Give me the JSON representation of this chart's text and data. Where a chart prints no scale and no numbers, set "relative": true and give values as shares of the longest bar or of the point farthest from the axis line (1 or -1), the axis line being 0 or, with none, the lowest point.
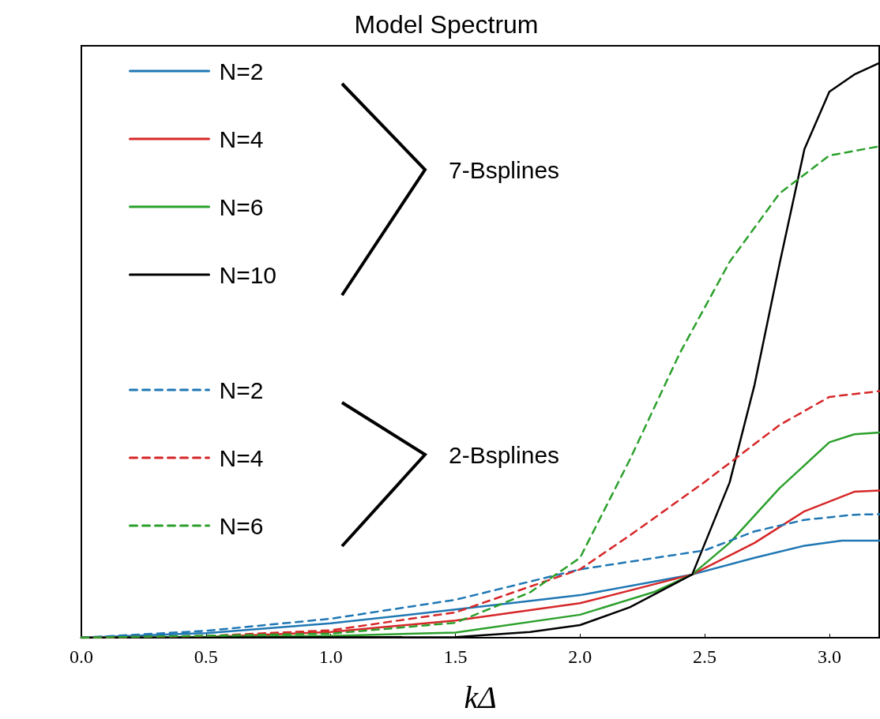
{
  "chart_data": {
    "type": "line",
    "title": "Model Spectrum",
    "xlabel": "kΔ",
    "relative": true,
    "grid": false,
    "legend": "top left",
    "marker": "none",
    "xlim": [
      0,
      3.2
    ],
    "xticks": [
      {
        "value": 0,
        "label": "0.0"
      },
      {
        "value": 0.5,
        "label": "0.5"
      },
      {
        "value": 1,
        "label": "1.0"
      },
      {
        "value": 1.5,
        "label": "1.5"
      },
      {
        "value": 2,
        "label": "2.0"
      },
      {
        "value": 2.5,
        "label": "2.5"
      },
      {
        "value": 3,
        "label": "3.0"
      }
    ],
    "annotations": [
      "7-Bsplines",
      "2-Bsplines"
    ],
    "series": [
      {
        "name": "N=2",
        "color": "#1f77b4",
        "line_style": "solid",
        "x": [
          0,
          0.5,
          1.0,
          1.5,
          2.0,
          2.45,
          2.7,
          2.9,
          3.05,
          3.2
        ],
        "values": [
          0,
          0.008,
          0.025,
          0.049,
          0.074,
          0.11,
          0.139,
          0.16,
          0.169,
          0.169
        ]
      },
      {
        "name": "N=4",
        "color": "#d62728",
        "line_style": "solid",
        "x": [
          0,
          0.5,
          1.0,
          1.5,
          2.0,
          2.45,
          2.7,
          2.9,
          3.1,
          3.2
        ],
        "values": [
          0,
          0.001,
          0.01,
          0.03,
          0.06,
          0.11,
          0.165,
          0.22,
          0.254,
          0.256
        ]
      },
      {
        "name": "N=6",
        "color": "#2ca02c",
        "line_style": "solid",
        "x": [
          0,
          1.0,
          1.5,
          2.0,
          2.3,
          2.45,
          2.6,
          2.8,
          3.0,
          3.1,
          3.2
        ],
        "values": [
          0,
          0.003,
          0.009,
          0.04,
          0.08,
          0.11,
          0.165,
          0.26,
          0.34,
          0.354,
          0.357
        ]
      },
      {
        "name": "N=10",
        "color": "#000000",
        "line_style": "solid",
        "x": [
          0,
          1.5,
          1.8,
          2.0,
          2.2,
          2.45,
          2.6,
          2.7,
          2.8,
          2.9,
          3.0,
          3.1,
          3.2
        ],
        "values": [
          0,
          0.001,
          0.01,
          0.022,
          0.053,
          0.11,
          0.27,
          0.44,
          0.65,
          0.85,
          0.95,
          0.98,
          1.0
        ]
      },
      {
        "name": "N=2",
        "color": "#1f77b4",
        "line_style": "dashed",
        "x": [
          0,
          0.5,
          1.0,
          1.5,
          2.0,
          2.5,
          2.7,
          2.9,
          3.1,
          3.2
        ],
        "values": [
          0,
          0.012,
          0.033,
          0.066,
          0.119,
          0.152,
          0.185,
          0.205,
          0.214,
          0.215
        ]
      },
      {
        "name": "N=4",
        "color": "#d62728",
        "line_style": "dashed",
        "x": [
          0,
          0.5,
          1.0,
          1.5,
          2.0,
          2.2,
          2.5,
          2.8,
          3.0,
          3.2
        ],
        "values": [
          0,
          0.003,
          0.013,
          0.044,
          0.119,
          0.178,
          0.271,
          0.37,
          0.419,
          0.429
        ]
      },
      {
        "name": "N=6",
        "color": "#2ca02c",
        "line_style": "dashed",
        "x": [
          0,
          1.0,
          1.5,
          1.8,
          2.0,
          2.2,
          2.4,
          2.6,
          2.8,
          3.0,
          3.2
        ],
        "values": [
          0,
          0.007,
          0.026,
          0.079,
          0.139,
          0.31,
          0.495,
          0.654,
          0.773,
          0.839,
          0.855
        ]
      }
    ]
  }
}
